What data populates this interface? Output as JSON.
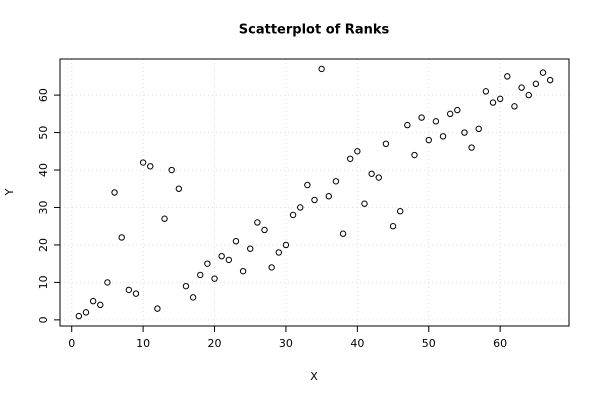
{
  "chart_data": {
    "type": "scatter",
    "title": "Scatterplot of Ranks",
    "x_label": "X",
    "y_label": "Y",
    "x": [
      1,
      2,
      3,
      4,
      5,
      6,
      7,
      8,
      9,
      10,
      11,
      12,
      13,
      14,
      15,
      16,
      17,
      18,
      19,
      20,
      21,
      22,
      23,
      24,
      25,
      26,
      27,
      28,
      29,
      30,
      31,
      32,
      33,
      34,
      35,
      36,
      37,
      38,
      39,
      40,
      41,
      42,
      43,
      44,
      45,
      46,
      47,
      48,
      49,
      50,
      51,
      52,
      53,
      54,
      55,
      56,
      57,
      58,
      59,
      60,
      61,
      62,
      63,
      64,
      65,
      66,
      67
    ],
    "y": [
      1,
      2,
      5,
      4,
      10,
      34,
      22,
      8,
      7,
      42,
      41,
      3,
      27,
      40,
      35,
      9,
      6,
      12,
      15,
      11,
      17,
      16,
      21,
      13,
      19,
      26,
      24,
      14,
      18,
      20,
      28,
      30,
      36,
      32,
      67,
      33,
      37,
      23,
      43,
      45,
      31,
      39,
      38,
      47,
      25,
      29,
      52,
      44,
      54,
      48,
      53,
      49,
      55,
      56,
      50,
      46,
      51,
      61,
      58,
      59,
      65,
      57,
      62,
      60,
      63,
      66,
      64
    ],
    "xlim": [
      -1.64,
      69.64
    ],
    "ylim": [
      -1.64,
      69.64
    ],
    "xticks": [
      0,
      10,
      20,
      30,
      40,
      50,
      60
    ],
    "yticks": [
      0,
      10,
      20,
      30,
      40,
      50,
      60
    ],
    "grid": true,
    "color": "#000000"
  }
}
